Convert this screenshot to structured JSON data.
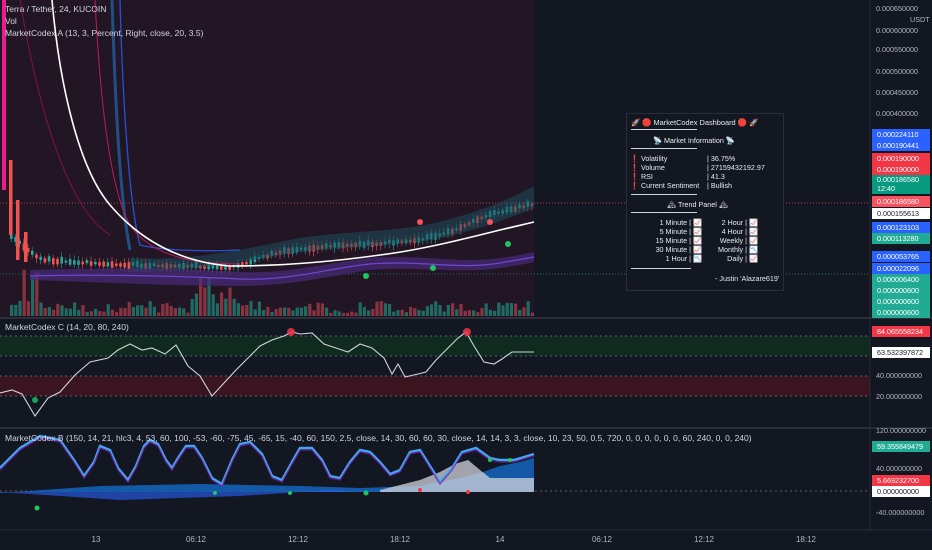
{
  "main_legend": {
    "symbol": "Terra / Tether, 24, KUCOIN",
    "volume": "Vol",
    "indicator_a": "MarketCodex A (13, 3, Percent, Right, close, 20, 3.5)"
  },
  "price_axis": {
    "currency": "USDT",
    "ticks": [
      "0.000650000",
      "0.000600000",
      "0.000550000",
      "0.000500000",
      "0.000450000",
      "0.000400000"
    ],
    "tags": [
      {
        "text": "0.000224110",
        "color": "#2962ff"
      },
      {
        "text": "0.000190441",
        "color": "#2962ff"
      },
      {
        "text": "0.000190000",
        "color": "#f23645"
      },
      {
        "text": "0.000190000",
        "color": "#f23645"
      },
      {
        "text": "0.000186580",
        "sub": "12:40",
        "color": "#089981"
      },
      {
        "text": "0.000186580",
        "color": "#f7525f"
      },
      {
        "text": "0.000155613",
        "color": "#ffffff",
        "dark": true
      },
      {
        "text": "0.000123103",
        "color": "#2962ff"
      },
      {
        "text": "0.000113280",
        "color": "#22ab94"
      },
      {
        "text": "0.000053765",
        "color": "#2962ff"
      },
      {
        "text": "0.000022096",
        "color": "#2962ff"
      },
      {
        "text": "0.000006400",
        "color": "#22ab94"
      },
      {
        "text": "0.000000600",
        "color": "#22ab94"
      },
      {
        "text": "0.000000600",
        "color": "#22ab94"
      },
      {
        "text": "0.000000600",
        "color": "#22ab94"
      }
    ]
  },
  "dashboard": {
    "title": "🚀 🛑 MarketCodex Dashboard 🛑 🚀",
    "market_header": "📡 Market Information 📡",
    "market_rows": [
      {
        "label": "❗ Volatility",
        "value": "| 36.75%"
      },
      {
        "label": "❗ Volume",
        "value": "| 27159432192.97"
      },
      {
        "label": "❗ RSI",
        "value": "| 41.3"
      },
      {
        "label": "❗ Current Sentiment",
        "value": "| Bullish"
      }
    ],
    "trend_header": "🏔 Trend Panel 🏔",
    "trend_rows": [
      {
        "left": "1 Minute |",
        "right": "2 Hour |"
      },
      {
        "left": "5 Minute |",
        "right": "4 Hour |"
      },
      {
        "left": "15 Minute |",
        "right": "Weekly |"
      },
      {
        "left": "30 Minute |",
        "right": "Monthly |"
      },
      {
        "left": "1 Hour |",
        "right": "Daily |"
      }
    ],
    "author": "- Justin 'Alazare619'"
  },
  "pane_c": {
    "legend": "MarketCodex C (14, 20, 80, 240)",
    "ticks": [
      "40.000000000",
      "20.000000000"
    ],
    "tags": [
      {
        "text": "84.065558234",
        "color": "#f23645"
      },
      {
        "text": "63.532397872",
        "color": "#ffffff",
        "dark": true
      }
    ]
  },
  "pane_b": {
    "legend": "MarketCodex B (150, 14, 21, hlc3, 4, 53, 60, 100, -53, -60, -75, 45, -65, 15, -40, 60, 150, 2.5, close, 14, 30, 60, 60, 30, close, 14, 14, 3, 3, close, 10, 23, 50, 0.5, 720, 0, 0, 0, 0, 0, 0, 60, 240, 0, 0, 240)",
    "ticks": [
      "120.000000000",
      "40.000000000",
      "-40.000000000"
    ],
    "tags": [
      {
        "text": "59.355849479",
        "color": "#22ab94"
      },
      {
        "text": "5.669232700",
        "color": "#f23645"
      },
      {
        "text": "0.000000000",
        "color": "#ffffff",
        "dark": true
      }
    ]
  },
  "time_axis": [
    "13",
    "06:12",
    "12:12",
    "18:12",
    "14",
    "06:12",
    "12:12",
    "18:12"
  ],
  "colors": {
    "bg": "#131722",
    "up": "#26a69a",
    "down": "#ef5350",
    "band": "#2962ff",
    "magenta": "#e91e8c"
  }
}
